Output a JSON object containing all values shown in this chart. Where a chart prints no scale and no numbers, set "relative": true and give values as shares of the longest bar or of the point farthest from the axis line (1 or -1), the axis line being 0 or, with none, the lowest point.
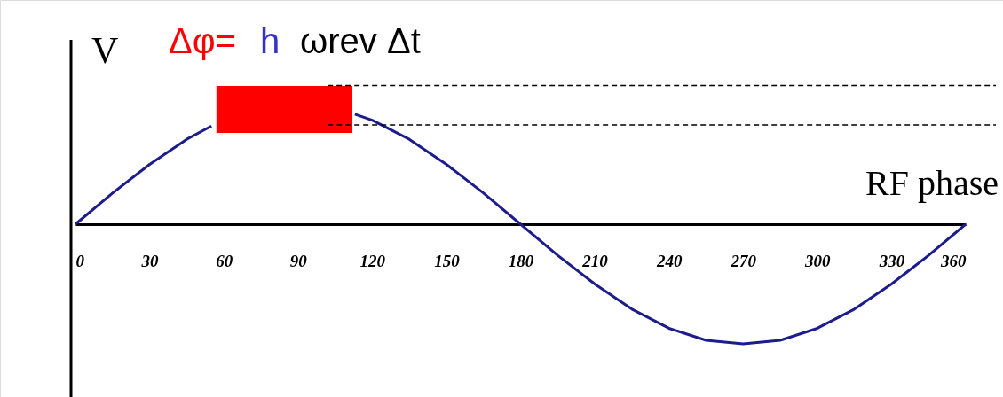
{
  "chart_data": {
    "type": "line",
    "relative": true,
    "xlabel": "RF phase",
    "ylabel": "V",
    "annotations": [
      "Δφ=",
      "h",
      "ωrev Δt"
    ],
    "x": [
      0,
      15,
      30,
      45,
      55,
      60,
      75,
      90,
      105,
      113,
      120,
      135,
      150,
      165,
      180,
      195,
      210,
      225,
      240,
      255,
      270,
      285,
      300,
      315,
      330,
      345,
      360
    ],
    "series": [
      {
        "color": "#1c1c8c",
        "values": [
          0,
          0.26,
          0.5,
          0.71,
          0.82,
          null,
          null,
          null,
          null,
          0.92,
          0.87,
          0.71,
          0.5,
          0.26,
          0,
          -0.26,
          -0.5,
          -0.71,
          -0.87,
          -0.97,
          -1,
          -0.97,
          -0.87,
          -0.71,
          -0.5,
          -0.26,
          0
        ]
      }
    ],
    "xlim": [
      0,
      360
    ],
    "xticks": [
      0,
      30,
      60,
      90,
      120,
      150,
      180,
      210,
      240,
      270,
      300,
      330,
      360
    ],
    "ref_lines": [
      {
        "axis": "y",
        "value": 1.16,
        "line_style": "dashed",
        "color": "#000000"
      },
      {
        "axis": "y",
        "value": 0.83,
        "line_style": "dashed",
        "color": "#000000"
      }
    ],
    "bands": [
      {
        "axis": "x",
        "from": 57,
        "to": 112,
        "color": "#ff0000"
      }
    ],
    "grid": false,
    "marker": "none",
    "line_style": "solid"
  }
}
